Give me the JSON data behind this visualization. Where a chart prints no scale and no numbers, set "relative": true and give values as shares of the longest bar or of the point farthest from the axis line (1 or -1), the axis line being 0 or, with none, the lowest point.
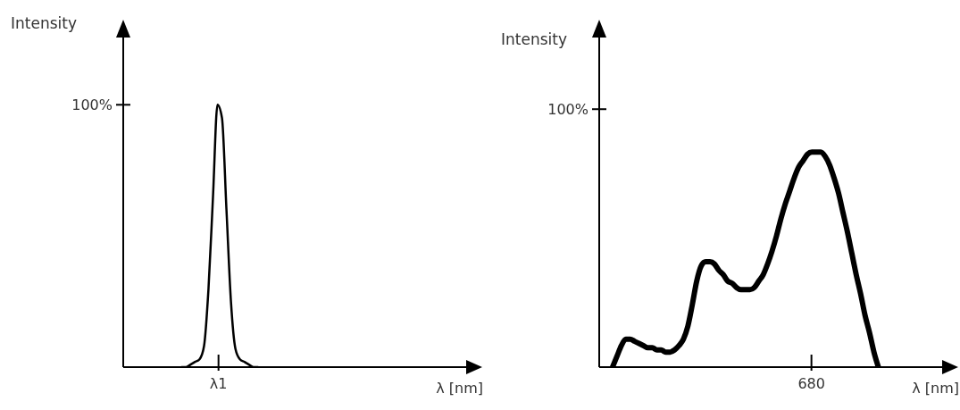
{
  "chart_data": [
    {
      "type": "line",
      "xlabel": "λ [nm]",
      "ylabel": "Intensity",
      "color": "#000000",
      "relative": true,
      "annotations": [
        "100%",
        "λ1"
      ],
      "categories": [
        null,
        null,
        null,
        null,
        null,
        null,
        null,
        null,
        null,
        null,
        null,
        null,
        null,
        null,
        null,
        null,
        null,
        null,
        null,
        null,
        null,
        null,
        null,
        null,
        null,
        null,
        null,
        null,
        null,
        null,
        null,
        null,
        null,
        null,
        null,
        null,
        null,
        null,
        null,
        null,
        null,
        null,
        null,
        null,
        null,
        null,
        null,
        null,
        null,
        null,
        null,
        null,
        null,
        null,
        null,
        null,
        null,
        null,
        null,
        null,
        null,
        null,
        null,
        null,
        null,
        null,
        null,
        null,
        null,
        null,
        null,
        null,
        null,
        null,
        null,
        null,
        null,
        null,
        null
      ],
      "values": [
        null,
        null,
        null,
        null,
        null,
        null,
        null,
        null,
        null,
        null,
        null,
        null,
        null,
        0,
        0,
        0.01,
        0.02,
        0.03,
        0.08,
        0.3,
        0.65,
        1,
        0.95,
        0.6,
        0.25,
        0.07,
        0.03,
        0.02,
        0.01,
        0,
        0,
        null,
        null,
        null,
        null,
        null,
        null,
        null,
        null,
        null,
        null,
        null,
        null,
        null,
        null,
        null,
        null,
        null,
        null,
        null,
        null,
        null,
        null,
        null,
        null,
        null,
        null,
        null,
        null,
        null,
        null,
        null,
        null,
        null,
        null,
        null,
        null,
        null,
        null,
        null,
        null,
        null,
        null,
        null,
        null,
        null,
        null,
        null,
        null
      ]
    },
    {
      "type": "line",
      "xlabel": "λ [nm]",
      "ylabel": "Intensity",
      "color": "#000000",
      "relative": true,
      "annotations": [
        "100%",
        "680"
      ],
      "categories": [
        null,
        null,
        null,
        null,
        null,
        null,
        null,
        null,
        null,
        null,
        null,
        null,
        null,
        null,
        null,
        null,
        null,
        null,
        null,
        null,
        null,
        null,
        null,
        null,
        null,
        null,
        null,
        null,
        null,
        null,
        null,
        null,
        null,
        null,
        null,
        null,
        null,
        null,
        null,
        null,
        null,
        null,
        null,
        null,
        null,
        null,
        null,
        null,
        null,
        null,
        null,
        null,
        null,
        null,
        null,
        null,
        null,
        null,
        null,
        null,
        null,
        null,
        null,
        null,
        null,
        null,
        null,
        null,
        null,
        null,
        null,
        null,
        null,
        null,
        null,
        null,
        null,
        null,
        null,
        null
      ],
      "values": [
        null,
        null,
        null,
        0,
        0.05,
        0.1,
        0.13,
        0.13,
        0.12,
        0.11,
        0.1,
        0.09,
        0.09,
        0.08,
        0.08,
        0.07,
        0.07,
        0.08,
        0.1,
        0.13,
        0.19,
        0.29,
        0.4,
        0.47,
        0.49,
        0.49,
        0.48,
        0.45,
        0.43,
        0.4,
        0.39,
        0.37,
        0.36,
        0.36,
        0.36,
        0.37,
        0.4,
        0.43,
        0.48,
        0.54,
        0.61,
        0.69,
        0.76,
        0.82,
        0.88,
        0.93,
        0.96,
        0.99,
        1,
        1,
        1,
        0.98,
        0.94,
        0.88,
        0.81,
        0.72,
        0.63,
        0.53,
        0.43,
        0.34,
        0.24,
        0.16,
        0.07,
        0,
        null,
        null,
        null,
        null,
        null,
        null,
        null,
        null,
        null,
        null,
        null,
        null,
        null,
        null,
        null,
        null
      ]
    }
  ]
}
